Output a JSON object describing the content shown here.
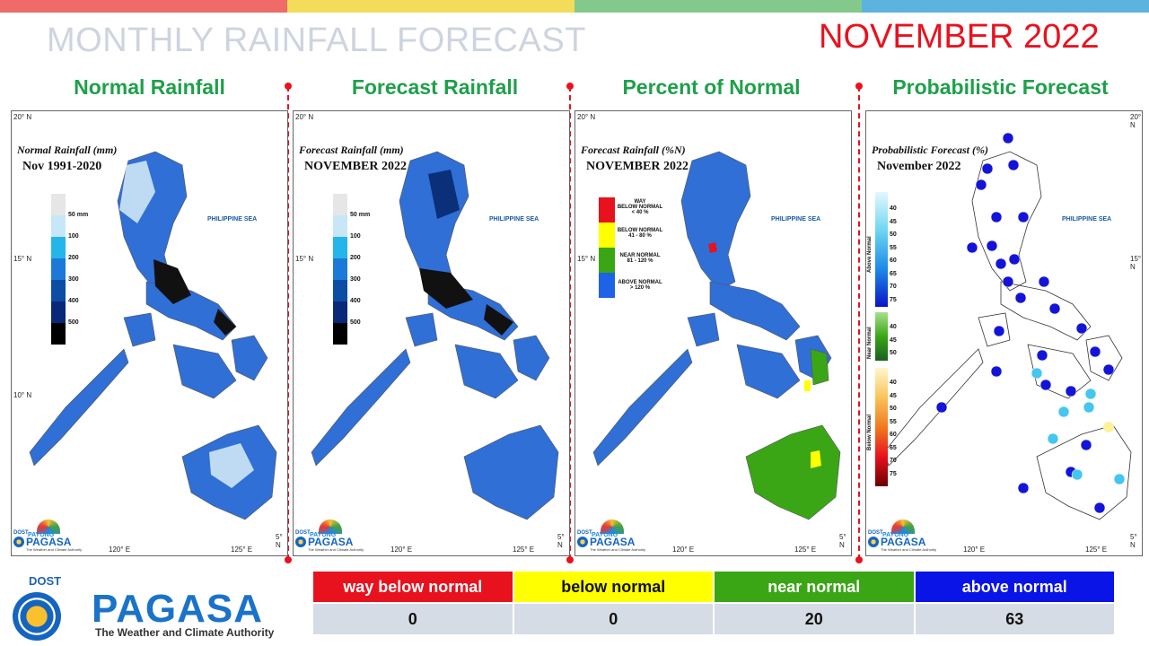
{
  "header": {
    "title": "MONTHLY RAINFALL FORECAST",
    "month": "NOVEMBER 2022",
    "bar_colors": [
      "#f06a6a",
      "#f3dc5a",
      "#82c98b",
      "#5cb3e0"
    ]
  },
  "panels": [
    {
      "title": "Normal Rainfall",
      "caption_line1": "Normal Rainfall (mm)",
      "caption_line2": "Nov 1991-2020",
      "sea_label": "PHILIPPINE SEA"
    },
    {
      "title": "Forecast Rainfall",
      "caption_line1": "Forecast Rainfall (mm)",
      "caption_line2": "NOVEMBER 2022",
      "sea_label": "PHILIPPINE SEA"
    },
    {
      "title": "Percent of Normal",
      "caption_line1": "Forecast Rainfall (%N)",
      "caption_line2": "NOVEMBER 2022",
      "sea_label": "PHILIPPINE SEA"
    },
    {
      "title": "Probabilistic Forecast",
      "caption_line1": "Probabilistic Forecast (%)",
      "caption_line2": "November 2022",
      "sea_label": "PHILIPPINE SEA"
    }
  ],
  "coords": {
    "lat20": "20° N",
    "lat15": "15° N",
    "lat10": "10° N",
    "lat5": "5° N",
    "lon120": "120° E",
    "lon125": "125° E"
  },
  "rain_legend": {
    "colors": [
      "#e6e6e6",
      "#c7e7f8",
      "#24b6ea",
      "#1d79d8",
      "#0b4ea3",
      "#0a2878",
      "#000000"
    ],
    "labels": [
      "50 mm",
      "100",
      "200",
      "300",
      "400",
      "500"
    ]
  },
  "pct_legend": [
    {
      "label_1": "WAY",
      "label_2": "BELOW NORMAL",
      "label_3": "< 40 %",
      "color": "#e8121e"
    },
    {
      "label_1": "BELOW NORMAL",
      "label_2": "41 - 80 %",
      "color": "#ffff00"
    },
    {
      "label_1": "NEAR NORMAL",
      "label_2": "81 - 120 %",
      "color": "#3aa616"
    },
    {
      "label_1": "ABOVE NORMAL",
      "label_2": "> 120 %",
      "color": "#1e63e6"
    }
  ],
  "prob_legend": {
    "above_title": "Above Normal",
    "above_labels": [
      "40",
      "45",
      "50",
      "55",
      "60",
      "65",
      "70",
      "75"
    ],
    "near_title": "Near Normal",
    "near_labels": [
      "40",
      "45",
      "50"
    ],
    "below_title": "Below Normal",
    "below_labels": [
      "40",
      "45",
      "50",
      "55",
      "60",
      "65",
      "70",
      "75"
    ]
  },
  "badge": {
    "dost": "DOST",
    "payong": "PAYONG",
    "name": "PAGASA",
    "tagline": "The Weather and Climate Authority"
  },
  "logo": {
    "dost": "DOST",
    "name": "PAGASA",
    "tagline": "The Weather and Climate Authority"
  },
  "summary": {
    "categories": [
      {
        "label": "way below normal",
        "value": "0",
        "color": "#e8121e",
        "text_color": "#ffffff"
      },
      {
        "label": "below normal",
        "value": "0",
        "color": "#ffff00",
        "text_color": "#111111"
      },
      {
        "label": "near normal",
        "value": "20",
        "color": "#3aa616",
        "text_color": "#ffffff"
      },
      {
        "label": "above normal",
        "value": "63",
        "color": "#0a14e6",
        "text_color": "#ffffff"
      }
    ],
    "value_row_color": "#d6dce5"
  }
}
